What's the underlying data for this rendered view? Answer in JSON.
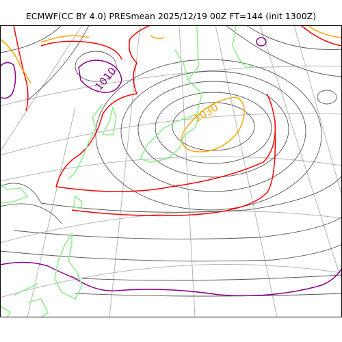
{
  "title": "ECMWF(CC BY 4.0) PRESmean 2025/12/19 00Z FT=144 (init 1300Z)",
  "colors": {
    "background": "#ffffff",
    "frame": "#000000",
    "graticule": "#b4b4b4",
    "coastline": "#90ee90",
    "isobar": "#555555",
    "contour_1010": "#8b008b",
    "contour_1020": "#ff0000",
    "contour_1030": "#ffa500"
  },
  "contour_labels": {
    "low": "1010",
    "high": "1030"
  }
}
